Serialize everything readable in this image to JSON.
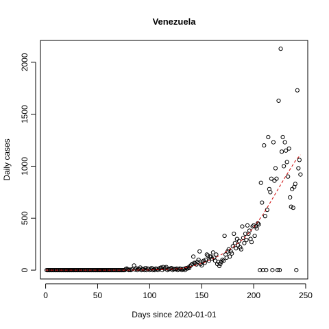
{
  "chart_data": {
    "type": "scatter",
    "title": "Venezuela",
    "xlabel": "Days since 2020-01-01",
    "ylabel": "Daily cases",
    "xlim": [
      -5,
      252
    ],
    "ylim": [
      -85,
      2210
    ],
    "xticks": [
      0,
      50,
      100,
      150,
      200,
      250
    ],
    "yticks": [
      0,
      500,
      1000,
      1500,
      2000
    ],
    "xtick_labels": [
      "0",
      "50",
      "100",
      "150",
      "200",
      "250"
    ],
    "ytick_labels": [
      "0",
      "500",
      "1000",
      "1500",
      "2000"
    ],
    "grid": false,
    "legend": "none",
    "marker": "open-circle",
    "point_color": "#000000",
    "trend_color": "#cc0000",
    "trend_style": "dashed",
    "zero_days": [
      1,
      2,
      3,
      4,
      5,
      6,
      7,
      8,
      9,
      10,
      11,
      12,
      13,
      14,
      15,
      16,
      17,
      18,
      19,
      20,
      21,
      22,
      23,
      24,
      25,
      26,
      27,
      28,
      29,
      30,
      31,
      32,
      33,
      34,
      35,
      36,
      37,
      38,
      39,
      40,
      41,
      42,
      43,
      44,
      45,
      46,
      47,
      48,
      49,
      50,
      51,
      52,
      53,
      54,
      55,
      56,
      57,
      58,
      59,
      60,
      61,
      62,
      63,
      64,
      65,
      66,
      67,
      68,
      69,
      70,
      71,
      72,
      73,
      74,
      75,
      76,
      80,
      82,
      88,
      92,
      95,
      97,
      100,
      103,
      105,
      108,
      112,
      117,
      122,
      127,
      131,
      134
    ],
    "points": [
      [
        77,
        10
      ],
      [
        78,
        15
      ],
      [
        79,
        5
      ],
      [
        81,
        5
      ],
      [
        83,
        8
      ],
      [
        85,
        45
      ],
      [
        86,
        5
      ],
      [
        87,
        18
      ],
      [
        89,
        12
      ],
      [
        90,
        8
      ],
      [
        91,
        25
      ],
      [
        93,
        8
      ],
      [
        94,
        10
      ],
      [
        96,
        20
      ],
      [
        98,
        15
      ],
      [
        99,
        12
      ],
      [
        101,
        10
      ],
      [
        102,
        20
      ],
      [
        104,
        8
      ],
      [
        106,
        15
      ],
      [
        107,
        10
      ],
      [
        109,
        15
      ],
      [
        110,
        20
      ],
      [
        111,
        25
      ],
      [
        113,
        30
      ],
      [
        114,
        15
      ],
      [
        115,
        20
      ],
      [
        116,
        30
      ],
      [
        118,
        10
      ],
      [
        119,
        10
      ],
      [
        120,
        15
      ],
      [
        121,
        20
      ],
      [
        123,
        10
      ],
      [
        124,
        10
      ],
      [
        125,
        8
      ],
      [
        126,
        15
      ],
      [
        128,
        10
      ],
      [
        129,
        15
      ],
      [
        130,
        12
      ],
      [
        132,
        10
      ],
      [
        133,
        12
      ],
      [
        135,
        20
      ],
      [
        136,
        15
      ],
      [
        137,
        25
      ],
      [
        138,
        20
      ],
      [
        139,
        40
      ],
      [
        140,
        50
      ],
      [
        141,
        60
      ],
      [
        142,
        130
      ],
      [
        143,
        70
      ],
      [
        144,
        65
      ],
      [
        145,
        55
      ],
      [
        146,
        80
      ],
      [
        147,
        100
      ],
      [
        148,
        180
      ],
      [
        149,
        60
      ],
      [
        150,
        45
      ],
      [
        151,
        80
      ],
      [
        152,
        90
      ],
      [
        153,
        70
      ],
      [
        154,
        100
      ],
      [
        155,
        150
      ],
      [
        156,
        140
      ],
      [
        157,
        90
      ],
      [
        158,
        130
      ],
      [
        159,
        130
      ],
      [
        160,
        110
      ],
      [
        161,
        170
      ],
      [
        162,
        120
      ],
      [
        163,
        90
      ],
      [
        164,
        150
      ],
      [
        165,
        60
      ],
      [
        166,
        80
      ],
      [
        167,
        40
      ],
      [
        168,
        60
      ],
      [
        169,
        80
      ],
      [
        170,
        100
      ],
      [
        171,
        90
      ],
      [
        172,
        330
      ],
      [
        173,
        150
      ],
      [
        174,
        120
      ],
      [
        175,
        180
      ],
      [
        176,
        200
      ],
      [
        177,
        130
      ],
      [
        178,
        180
      ],
      [
        179,
        160
      ],
      [
        180,
        230
      ],
      [
        181,
        350
      ],
      [
        182,
        260
      ],
      [
        183,
        210
      ],
      [
        184,
        300
      ],
      [
        185,
        240
      ],
      [
        186,
        280
      ],
      [
        187,
        220
      ],
      [
        188,
        200
      ],
      [
        189,
        420
      ],
      [
        190,
        310
      ],
      [
        191,
        260
      ],
      [
        192,
        350
      ],
      [
        193,
        290
      ],
      [
        194,
        430
      ],
      [
        195,
        350
      ],
      [
        196,
        380
      ],
      [
        197,
        300
      ],
      [
        198,
        270
      ],
      [
        199,
        420
      ],
      [
        200,
        430
      ],
      [
        201,
        330
      ],
      [
        202,
        420
      ],
      [
        203,
        400
      ],
      [
        204,
        450
      ],
      [
        205,
        440
      ],
      [
        206,
        0
      ],
      [
        207,
        840
      ],
      [
        208,
        650
      ],
      [
        209,
        0
      ],
      [
        210,
        1200
      ],
      [
        211,
        520
      ],
      [
        212,
        0
      ],
      [
        213,
        580
      ],
      [
        214,
        1280
      ],
      [
        215,
        780
      ],
      [
        216,
        750
      ],
      [
        217,
        880
      ],
      [
        218,
        0
      ],
      [
        219,
        1230
      ],
      [
        220,
        860
      ],
      [
        221,
        980
      ],
      [
        222,
        880
      ],
      [
        223,
        0
      ],
      [
        224,
        1630
      ],
      [
        225,
        0
      ],
      [
        226,
        2130
      ],
      [
        227,
        1140
      ],
      [
        228,
        1280
      ],
      [
        229,
        1000
      ],
      [
        230,
        1230
      ],
      [
        231,
        1150
      ],
      [
        232,
        1040
      ],
      [
        233,
        900
      ],
      [
        234,
        1170
      ],
      [
        235,
        700
      ],
      [
        236,
        610
      ],
      [
        237,
        780
      ],
      [
        238,
        600
      ],
      [
        239,
        800
      ],
      [
        240,
        830
      ],
      [
        241,
        0
      ],
      [
        242,
        1730
      ],
      [
        243,
        980
      ],
      [
        244,
        1060
      ],
      [
        245,
        920
      ]
    ],
    "trend": [
      [
        0,
        0
      ],
      [
        50,
        0
      ],
      [
        75,
        0
      ],
      [
        100,
        2
      ],
      [
        120,
        8
      ],
      [
        130,
        15
      ],
      [
        140,
        35
      ],
      [
        150,
        65
      ],
      [
        160,
        105
      ],
      [
        170,
        155
      ],
      [
        180,
        220
      ],
      [
        190,
        300
      ],
      [
        200,
        410
      ],
      [
        210,
        550
      ],
      [
        220,
        720
      ],
      [
        230,
        890
      ],
      [
        240,
        1050
      ],
      [
        245,
        1110
      ]
    ]
  }
}
